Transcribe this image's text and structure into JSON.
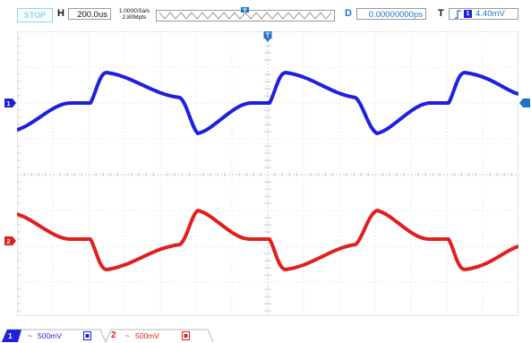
{
  "status": {
    "run_state": "STOP"
  },
  "horizontal": {
    "label": "H",
    "timebase": "200.0us"
  },
  "acquisition": {
    "sample_rate": "1.000GSa/s",
    "memory_depth": "2.80Mpts"
  },
  "delay": {
    "label": "D",
    "value": "0.00000000ps"
  },
  "trigger": {
    "label": "T",
    "source": "1",
    "level": "4.40mV"
  },
  "channels": [
    {
      "number": "1",
      "coupling_symbol": "~",
      "scale": "500mV",
      "color": "#1f1fe0"
    },
    {
      "number": "2",
      "coupling_symbol": "~",
      "scale": "500mV",
      "color": "#e01f1f"
    }
  ],
  "colors": {
    "accent": "#1f73c7",
    "grid": "#cfcfcf",
    "stop": "#7fd6ee"
  }
}
